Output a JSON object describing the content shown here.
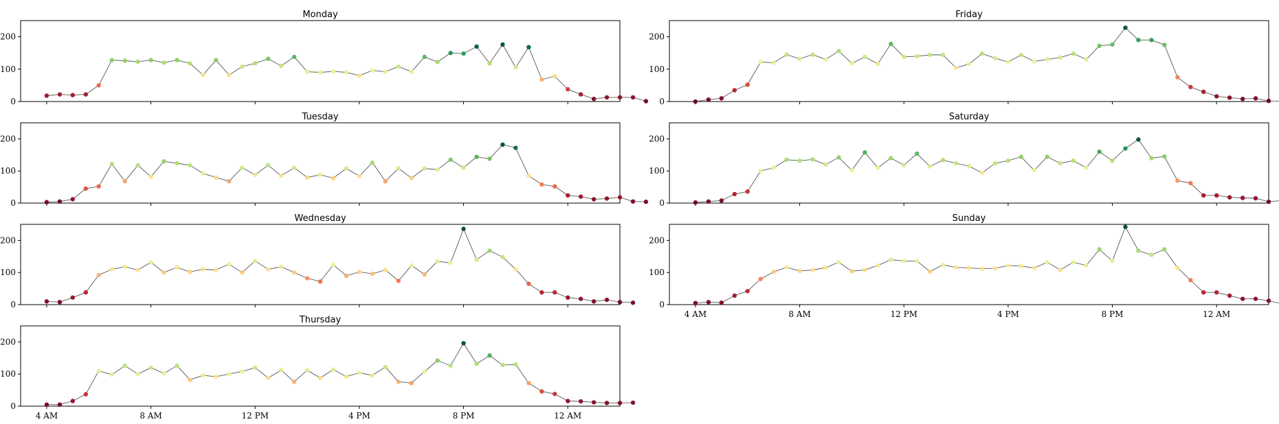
{
  "chart_data": {
    "type": "line",
    "y_ticks": [
      "0",
      "100",
      "200"
    ],
    "x_tick_labels": [
      "4 AM",
      "8 AM",
      "12 PM",
      "4 PM",
      "8 PM",
      "12 AM"
    ],
    "x_tick_positions": [
      0,
      8,
      16,
      24,
      32,
      40
    ],
    "ylim": [
      0,
      250
    ],
    "xlim": [
      -2,
      44
    ],
    "color_scale": "red-yellow-green, by value",
    "grid": false,
    "panels": [
      {
        "title": "Monday",
        "values": [
          18,
          22,
          20,
          22,
          50,
          128,
          126,
          123,
          128,
          120,
          128,
          118,
          82,
          128,
          82,
          108,
          118,
          132,
          110,
          138,
          92,
          90,
          93,
          90,
          80,
          96,
          92,
          108,
          92,
          138,
          122,
          150,
          148,
          170,
          118,
          176,
          105,
          168,
          68,
          78,
          38,
          22,
          8,
          13,
          13,
          13,
          1
        ]
      },
      {
        "title": "Tuesday",
        "values": [
          3,
          5,
          12,
          45,
          52,
          122,
          68,
          118,
          82,
          130,
          124,
          118,
          92,
          80,
          68,
          110,
          88,
          118,
          85,
          110,
          80,
          88,
          78,
          108,
          84,
          126,
          68,
          108,
          78,
          108,
          104,
          135,
          110,
          144,
          138,
          182,
          172,
          85,
          58,
          52,
          24,
          20,
          12,
          14,
          18,
          5,
          4
        ]
      },
      {
        "title": "Wednesday",
        "values": [
          10,
          8,
          22,
          38,
          92,
          110,
          118,
          108,
          132,
          100,
          116,
          102,
          110,
          108,
          126,
          100,
          136,
          110,
          118,
          100,
          82,
          72,
          124,
          90,
          102,
          96,
          108,
          74,
          122,
          94,
          135,
          130,
          236,
          140,
          168,
          148,
          110,
          65,
          38,
          38,
          22,
          18,
          10,
          15,
          8,
          6
        ]
      },
      {
        "title": "Thursday",
        "values": [
          5,
          5,
          16,
          37,
          110,
          98,
          126,
          100,
          120,
          102,
          126,
          82,
          96,
          92,
          100,
          108,
          120,
          88,
          112,
          76,
          112,
          88,
          114,
          92,
          104,
          96,
          122,
          76,
          72,
          108,
          142,
          126,
          196,
          132,
          158,
          128,
          130,
          72,
          46,
          38,
          16,
          15,
          12,
          10,
          10,
          11
        ]
      },
      {
        "title": "Friday",
        "values": [
          0,
          6,
          10,
          35,
          52,
          122,
          120,
          145,
          132,
          145,
          130,
          156,
          118,
          138,
          116,
          178,
          138,
          140,
          144,
          144,
          104,
          116,
          148,
          134,
          122,
          144,
          124,
          130,
          136,
          148,
          130,
          172,
          176,
          228,
          190,
          190,
          175,
          75,
          45,
          30,
          16,
          12,
          8,
          10,
          2,
          1
        ]
      },
      {
        "title": "Saturday",
        "values": [
          2,
          5,
          8,
          28,
          36,
          100,
          110,
          135,
          132,
          136,
          120,
          142,
          102,
          158,
          110,
          140,
          118,
          154,
          114,
          134,
          124,
          115,
          94,
          124,
          132,
          144,
          102,
          144,
          124,
          132,
          110,
          160,
          132,
          170,
          198,
          140,
          145,
          70,
          62,
          24,
          24,
          18,
          16,
          15,
          4,
          8
        ]
      },
      {
        "title": "Sunday",
        "values": [
          5,
          8,
          6,
          28,
          42,
          80,
          102,
          116,
          105,
          108,
          115,
          132,
          104,
          108,
          122,
          140,
          136,
          136,
          103,
          124,
          116,
          114,
          112,
          113,
          122,
          120,
          114,
          132,
          108,
          132,
          122,
          172,
          136,
          242,
          168,
          155,
          172,
          115,
          76,
          38,
          38,
          28,
          18,
          18,
          12,
          3,
          6
        ]
      }
    ]
  }
}
